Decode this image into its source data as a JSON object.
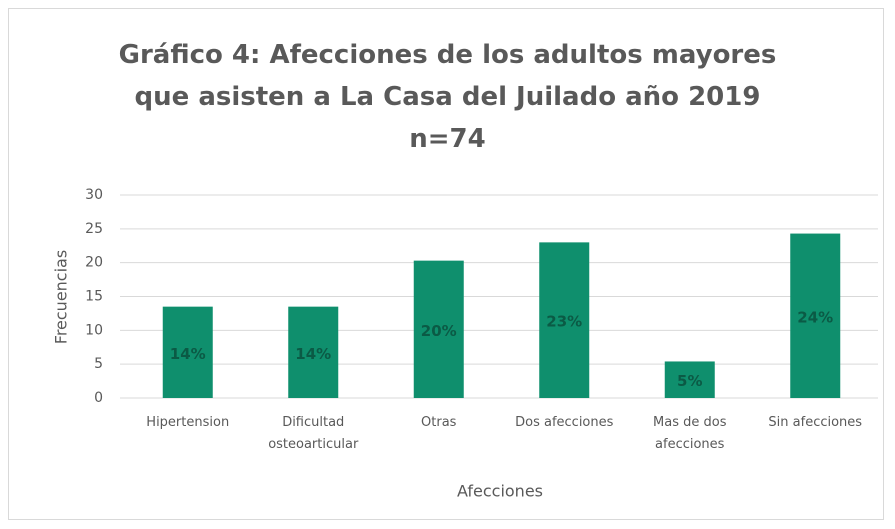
{
  "chart_data": {
    "type": "bar",
    "title": "Gráfico 4: Afecciones de los adultos mayores\nque asisten a La Casa del Juilado año 2019\nn=74",
    "categories": [
      "Hipertension",
      "Dificultad osteoarticular",
      "Otras",
      "Dos afecciones",
      "Mas de dos afecciones",
      "Sin afecciones"
    ],
    "values": [
      13.5,
      13.5,
      20.3,
      23,
      5.4,
      24.3
    ],
    "value_labels": [
      "14%",
      "14%",
      "20%",
      "23%",
      "5%",
      "24%"
    ],
    "color": "#0f8f6d",
    "x_label": "Afecciones",
    "y_label": "Frecuencias",
    "ylim": [
      0,
      30
    ],
    "yticks": [
      0,
      5,
      10,
      15,
      20,
      25,
      30
    ],
    "grid": true
  }
}
